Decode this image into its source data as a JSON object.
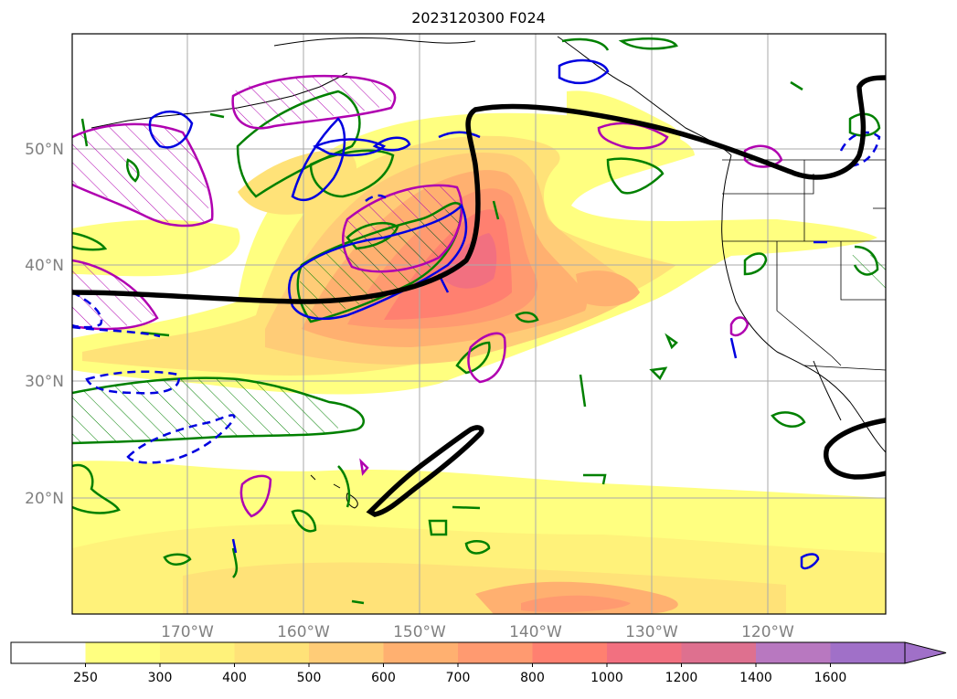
{
  "title": "2023120300 F024",
  "map": {
    "lat_ticks": [
      "50°N",
      "40°N",
      "30°N",
      "20°N"
    ],
    "lon_ticks": [
      "170°W",
      "160°W",
      "150°W",
      "140°W",
      "130°W",
      "120°W"
    ]
  },
  "colorbar": {
    "levels": [
      "250",
      "300",
      "400",
      "500",
      "600",
      "700",
      "800",
      "1000",
      "1200",
      "1400",
      "1600"
    ],
    "colors": [
      "#ffffff",
      "#ffff80",
      "#fff27a",
      "#ffe278",
      "#ffcc77",
      "#ffb070",
      "#ff9a70",
      "#ff8070",
      "#f27080",
      "#de708f",
      "#b878c0",
      "#a070c8"
    ],
    "extend": "max"
  }
}
